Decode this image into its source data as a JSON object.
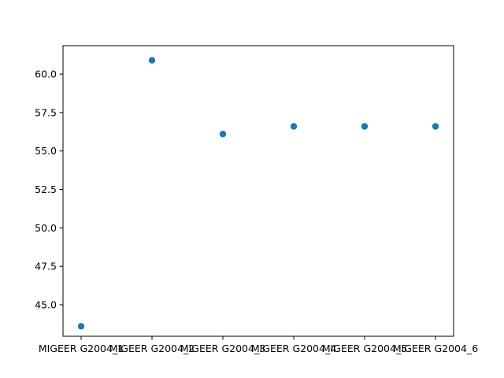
{
  "chart_data": {
    "type": "scatter",
    "title": "",
    "xlabel": "",
    "ylabel": "",
    "categories": [
      "MIGEER G2004_1",
      "MIGEER G2004_2",
      "MIGEER G2004_3",
      "MIGEER G2004_4",
      "MIGEER G2004_5",
      "MIGEER G2004_6"
    ],
    "values": [
      43.6,
      60.9,
      56.1,
      56.6,
      56.6,
      56.6
    ],
    "ylim": [
      42.95,
      61.85
    ],
    "yticks": [
      45.0,
      47.5,
      50.0,
      52.5,
      55.0,
      57.5,
      60.0
    ],
    "ytick_labels": [
      "45.0",
      "47.5",
      "50.0",
      "52.5",
      "55.0",
      "57.5",
      "60.0"
    ],
    "grid": false,
    "legend": "none",
    "marker_color": "#1f77b4"
  }
}
